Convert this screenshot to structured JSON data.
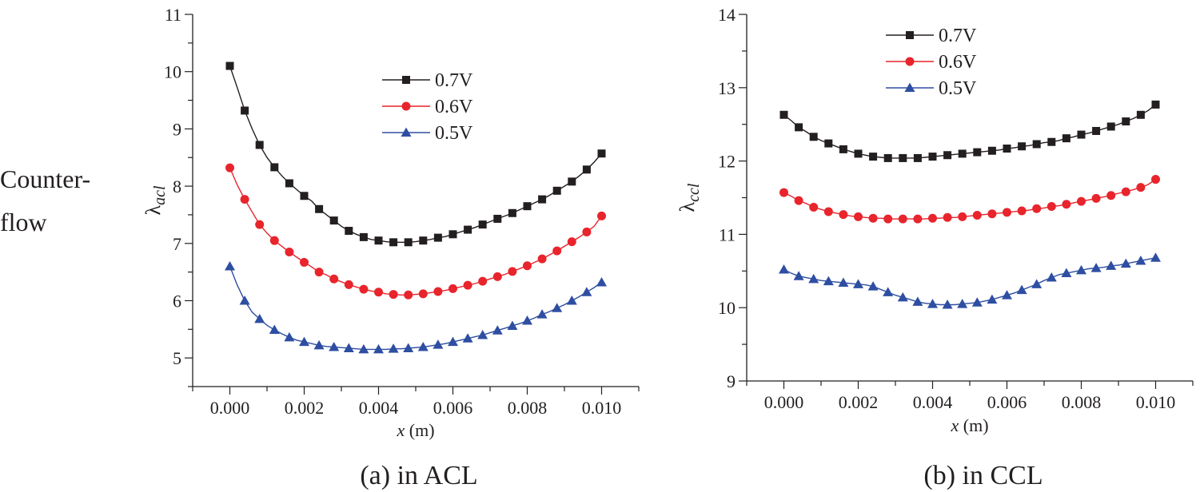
{
  "row_label": [
    "Counter-",
    "flow"
  ],
  "colors": {
    "series_0.7V": "#231f20",
    "series_0.6V": "#e8242c",
    "series_0.5V": "#2e4ea2",
    "axis": "#231f20"
  },
  "chart_data": [
    {
      "type": "line",
      "caption": "(a) in ACL",
      "xlabel": "x (m)",
      "ylabel": "λacl",
      "xlim": [
        -0.001,
        0.011
      ],
      "ylim": [
        4.5,
        11
      ],
      "xticks": [
        "0.000",
        "0.002",
        "0.004",
        "0.006",
        "0.008",
        "0.010"
      ],
      "yticks": [
        "5",
        "6",
        "7",
        "8",
        "9",
        "10",
        "11"
      ],
      "legend_position": "upper-center",
      "grid": false,
      "series": [
        {
          "name": "0.7V",
          "marker": "square",
          "x": [
            0.0,
            0.0002,
            0.0004,
            0.0006,
            0.0008,
            0.001,
            0.0012,
            0.0014,
            0.0016,
            0.0018,
            0.002,
            0.0022,
            0.0024,
            0.0026,
            0.0028,
            0.003,
            0.0032,
            0.0034,
            0.0036,
            0.0038,
            0.004,
            0.0042,
            0.0044,
            0.0046,
            0.0048,
            0.005,
            0.0052,
            0.0054,
            0.0056,
            0.0058,
            0.006,
            0.0062,
            0.0064,
            0.0066,
            0.0068,
            0.007,
            0.0072,
            0.0074,
            0.0076,
            0.0078,
            0.008,
            0.0082,
            0.0084,
            0.0086,
            0.0088,
            0.009,
            0.0092,
            0.0094,
            0.0096,
            0.0098,
            0.01
          ],
          "values": [
            10.1,
            9.72,
            9.32,
            9.0,
            8.72,
            8.5,
            8.33,
            8.18,
            8.05,
            7.94,
            7.83,
            7.74,
            7.6,
            7.5,
            7.4,
            7.3,
            7.22,
            7.16,
            7.11,
            7.07,
            7.05,
            7.03,
            7.02,
            7.02,
            7.02,
            7.03,
            7.05,
            7.07,
            7.1,
            7.12,
            7.16,
            7.2,
            7.24,
            7.28,
            7.33,
            7.38,
            7.43,
            7.48,
            7.53,
            7.59,
            7.65,
            7.71,
            7.77,
            7.84,
            7.92,
            8.0,
            8.08,
            8.18,
            8.29,
            8.42,
            8.57
          ]
        },
        {
          "name": "0.6V",
          "marker": "circle",
          "x": [
            0.0,
            0.0002,
            0.0004,
            0.0006,
            0.0008,
            0.001,
            0.0012,
            0.0014,
            0.0016,
            0.0018,
            0.002,
            0.0022,
            0.0024,
            0.0026,
            0.0028,
            0.003,
            0.0032,
            0.0034,
            0.0036,
            0.0038,
            0.004,
            0.0042,
            0.0044,
            0.0046,
            0.0048,
            0.005,
            0.0052,
            0.0054,
            0.0056,
            0.0058,
            0.006,
            0.0062,
            0.0064,
            0.0066,
            0.0068,
            0.007,
            0.0072,
            0.0074,
            0.0076,
            0.0078,
            0.008,
            0.0082,
            0.0084,
            0.0086,
            0.0088,
            0.009,
            0.0092,
            0.0094,
            0.0096,
            0.0098,
            0.01
          ],
          "values": [
            8.32,
            8.02,
            7.77,
            7.55,
            7.33,
            7.18,
            7.05,
            6.95,
            6.85,
            6.76,
            6.67,
            6.59,
            6.5,
            6.45,
            6.38,
            6.33,
            6.28,
            6.24,
            6.2,
            6.17,
            6.15,
            6.12,
            6.11,
            6.1,
            6.1,
            6.11,
            6.12,
            6.14,
            6.16,
            6.18,
            6.21,
            6.24,
            6.27,
            6.3,
            6.34,
            6.38,
            6.42,
            6.46,
            6.51,
            6.56,
            6.61,
            6.67,
            6.73,
            6.8,
            6.87,
            6.95,
            7.03,
            7.11,
            7.2,
            7.3,
            7.48
          ]
        },
        {
          "name": "0.5V",
          "marker": "triangle",
          "x": [
            0.0,
            0.0002,
            0.0004,
            0.0006,
            0.0008,
            0.001,
            0.0012,
            0.0014,
            0.0016,
            0.0018,
            0.002,
            0.0022,
            0.0024,
            0.0026,
            0.0028,
            0.003,
            0.0032,
            0.0034,
            0.0036,
            0.0038,
            0.004,
            0.0042,
            0.0044,
            0.0046,
            0.0048,
            0.005,
            0.0052,
            0.0054,
            0.0056,
            0.0058,
            0.006,
            0.0062,
            0.0064,
            0.0066,
            0.0068,
            0.007,
            0.0072,
            0.0074,
            0.0076,
            0.0078,
            0.008,
            0.0082,
            0.0084,
            0.0086,
            0.0088,
            0.009,
            0.0092,
            0.0094,
            0.0096,
            0.0098,
            0.01
          ],
          "values": [
            6.6,
            6.27,
            6.0,
            5.8,
            5.68,
            5.57,
            5.49,
            5.42,
            5.36,
            5.31,
            5.28,
            5.25,
            5.22,
            5.2,
            5.19,
            5.18,
            5.17,
            5.16,
            5.15,
            5.15,
            5.15,
            5.15,
            5.16,
            5.16,
            5.17,
            5.18,
            5.19,
            5.21,
            5.23,
            5.25,
            5.28,
            5.31,
            5.34,
            5.37,
            5.4,
            5.44,
            5.48,
            5.52,
            5.56,
            5.6,
            5.65,
            5.7,
            5.76,
            5.81,
            5.87,
            5.93,
            6.0,
            6.07,
            6.15,
            6.23,
            6.32
          ]
        }
      ]
    },
    {
      "type": "line",
      "caption": "(b) in CCL",
      "xlabel": "x (m)",
      "ylabel": "λccl",
      "xlim": [
        -0.001,
        0.011
      ],
      "ylim": [
        9,
        14
      ],
      "xticks": [
        "0.000",
        "0.002",
        "0.004",
        "0.006",
        "0.008",
        "0.010"
      ],
      "yticks": [
        "9",
        "10",
        "11",
        "12",
        "13",
        "14"
      ],
      "legend_position": "upper-center",
      "grid": false,
      "series": [
        {
          "name": "0.7V",
          "marker": "square",
          "x": [
            0.0,
            0.0002,
            0.0004,
            0.0006,
            0.0008,
            0.001,
            0.0012,
            0.0014,
            0.0016,
            0.0018,
            0.002,
            0.0022,
            0.0024,
            0.0026,
            0.0028,
            0.003,
            0.0032,
            0.0034,
            0.0036,
            0.0038,
            0.004,
            0.0042,
            0.0044,
            0.0046,
            0.0048,
            0.005,
            0.0052,
            0.0054,
            0.0056,
            0.0058,
            0.006,
            0.0062,
            0.0064,
            0.0066,
            0.0068,
            0.007,
            0.0072,
            0.0074,
            0.0076,
            0.0078,
            0.008,
            0.0082,
            0.0084,
            0.0086,
            0.0088,
            0.009,
            0.0092,
            0.0094,
            0.0096,
            0.0098,
            0.01
          ],
          "values": [
            12.63,
            12.55,
            12.46,
            12.4,
            12.33,
            12.28,
            12.24,
            12.2,
            12.16,
            12.13,
            12.1,
            12.08,
            12.06,
            12.05,
            12.04,
            12.04,
            12.04,
            12.04,
            12.04,
            12.05,
            12.06,
            12.07,
            12.08,
            12.09,
            12.1,
            12.11,
            12.12,
            12.13,
            12.14,
            12.15,
            12.17,
            12.18,
            12.2,
            12.21,
            12.23,
            12.25,
            12.26,
            12.28,
            12.31,
            12.33,
            12.36,
            12.38,
            12.41,
            12.44,
            12.47,
            12.5,
            12.54,
            12.58,
            12.63,
            12.69,
            12.77
          ]
        },
        {
          "name": "0.6V",
          "marker": "circle",
          "x": [
            0.0,
            0.0002,
            0.0004,
            0.0006,
            0.0008,
            0.001,
            0.0012,
            0.0014,
            0.0016,
            0.0018,
            0.002,
            0.0022,
            0.0024,
            0.0026,
            0.0028,
            0.003,
            0.0032,
            0.0034,
            0.0036,
            0.0038,
            0.004,
            0.0042,
            0.0044,
            0.0046,
            0.0048,
            0.005,
            0.0052,
            0.0054,
            0.0056,
            0.0058,
            0.006,
            0.0062,
            0.0064,
            0.0066,
            0.0068,
            0.007,
            0.0072,
            0.0074,
            0.0076,
            0.0078,
            0.008,
            0.0082,
            0.0084,
            0.0086,
            0.0088,
            0.009,
            0.0092,
            0.0094,
            0.0096,
            0.0098,
            0.01
          ],
          "values": [
            11.57,
            11.52,
            11.46,
            11.42,
            11.37,
            11.34,
            11.31,
            11.29,
            11.27,
            11.25,
            11.24,
            11.23,
            11.22,
            11.22,
            11.21,
            11.21,
            11.21,
            11.21,
            11.21,
            11.21,
            11.22,
            11.22,
            11.23,
            11.23,
            11.24,
            11.25,
            11.26,
            11.27,
            11.28,
            11.29,
            11.3,
            11.31,
            11.32,
            11.33,
            11.35,
            11.36,
            11.38,
            11.39,
            11.41,
            11.43,
            11.45,
            11.47,
            11.49,
            11.51,
            11.53,
            11.56,
            11.58,
            11.61,
            11.64,
            11.68,
            11.75
          ]
        },
        {
          "name": "0.5V",
          "marker": "triangle",
          "x": [
            0.0,
            0.0002,
            0.0004,
            0.0006,
            0.0008,
            0.001,
            0.0012,
            0.0014,
            0.0016,
            0.0018,
            0.002,
            0.0022,
            0.0024,
            0.0026,
            0.0028,
            0.003,
            0.0032,
            0.0034,
            0.0036,
            0.0038,
            0.004,
            0.0042,
            0.0044,
            0.0046,
            0.0048,
            0.005,
            0.0052,
            0.0054,
            0.0056,
            0.0058,
            0.006,
            0.0062,
            0.0064,
            0.0066,
            0.0068,
            0.007,
            0.0072,
            0.0074,
            0.0076,
            0.0078,
            0.008,
            0.0082,
            0.0084,
            0.0086,
            0.0088,
            0.009,
            0.0092,
            0.0094,
            0.0096,
            0.0098,
            0.01
          ],
          "values": [
            10.52,
            10.47,
            10.43,
            10.41,
            10.39,
            10.37,
            10.36,
            10.35,
            10.34,
            10.33,
            10.32,
            10.31,
            10.29,
            10.25,
            10.21,
            10.17,
            10.14,
            10.11,
            10.08,
            10.06,
            10.05,
            10.04,
            10.04,
            10.04,
            10.05,
            10.06,
            10.07,
            10.09,
            10.11,
            10.14,
            10.17,
            10.2,
            10.24,
            10.28,
            10.32,
            10.37,
            10.41,
            10.45,
            10.47,
            10.49,
            10.51,
            10.53,
            10.54,
            10.55,
            10.57,
            10.58,
            10.6,
            10.62,
            10.64,
            10.66,
            10.68
          ]
        }
      ]
    }
  ]
}
